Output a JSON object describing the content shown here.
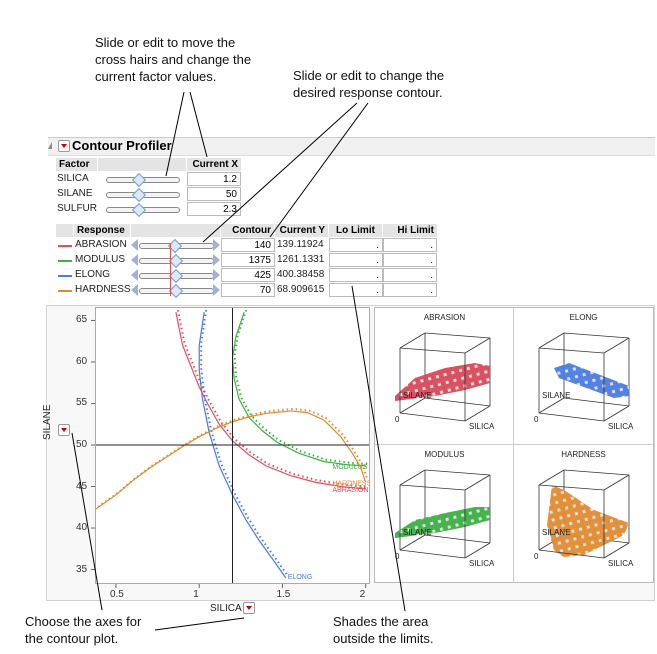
{
  "annotations": {
    "crosshairs": "Slide or edit to move the\ncross hairs and change the\ncurrent factor values.",
    "contour": "Slide or edit to change the\ndesired response contour.",
    "axes": "Choose the axes for\nthe contour plot.",
    "shade": "Shades the area\noutside the limits."
  },
  "panel": {
    "title": "Contour Profiler"
  },
  "factor_table": {
    "headers": {
      "factor": "Factor",
      "current_x": "Current X"
    },
    "rows": [
      {
        "name": "SILICA",
        "value": "1.2",
        "slider": 0.45
      },
      {
        "name": "SILANE",
        "value": "50",
        "slider": 0.45
      },
      {
        "name": "SULFUR",
        "value": "2.3",
        "slider": 0.45
      }
    ]
  },
  "response_table": {
    "headers": {
      "response": "Response",
      "contour": "Contour",
      "current_y": "Current Y",
      "lo": "Lo Limit",
      "hi": "Hi Limit"
    },
    "rows": [
      {
        "name": "ABRASION",
        "color": "#e0505a",
        "contour": "140",
        "current_y": "139.11924",
        "lo": ".",
        "hi": "."
      },
      {
        "name": "MODULUS",
        "color": "#3cb043",
        "contour": "1375",
        "current_y": "1261.1331",
        "lo": ".",
        "hi": "."
      },
      {
        "name": "ELONG",
        "color": "#4a7be0",
        "contour": "425",
        "current_y": "400.38458",
        "lo": ".",
        "hi": "."
      },
      {
        "name": "HARDNESS",
        "color": "#e08a30",
        "contour": "70",
        "current_y": "68.909615",
        "lo": ".",
        "hi": "."
      }
    ]
  },
  "chart_data": {
    "type": "line",
    "xlabel": "SILICA",
    "ylabel": "SILANE",
    "xlim": [
      0.38,
      2.02
    ],
    "ylim": [
      33.5,
      66.5
    ],
    "xticks": [
      "0.5",
      "1",
      "1.5",
      "2"
    ],
    "yticks": [
      "35",
      "40",
      "45",
      "50",
      "55",
      "60",
      "65"
    ],
    "crosshair": {
      "x": 1.2,
      "y": 50
    },
    "series": [
      {
        "name": "ABRASION",
        "label": "ABRASION",
        "color": "#e0505a",
        "points": [
          [
            0.86,
            66
          ],
          [
            0.9,
            62
          ],
          [
            0.95,
            59.5
          ],
          [
            1.0,
            57
          ],
          [
            1.05,
            55
          ],
          [
            1.12,
            52.5
          ],
          [
            1.2,
            50.5
          ],
          [
            1.3,
            48.8
          ],
          [
            1.4,
            47.5
          ],
          [
            1.55,
            46.3
          ],
          [
            1.7,
            45.5
          ],
          [
            1.85,
            45
          ],
          [
            2.0,
            44.7
          ]
        ]
      },
      {
        "name": "MODULUS",
        "label": "MODULUS",
        "color": "#3cb043",
        "points": [
          [
            1.27,
            66
          ],
          [
            1.22,
            63
          ],
          [
            1.2,
            60.5
          ],
          [
            1.21,
            58
          ],
          [
            1.24,
            55.5
          ],
          [
            1.3,
            53.3
          ],
          [
            1.38,
            51.7
          ],
          [
            1.47,
            50.3
          ],
          [
            1.6,
            49
          ],
          [
            1.75,
            48
          ],
          [
            1.9,
            47.6
          ],
          [
            2.0,
            47.5
          ]
        ]
      },
      {
        "name": "ELONG",
        "label": "ELONG",
        "color": "#4a7be0",
        "points": [
          [
            1.03,
            66
          ],
          [
            1.0,
            62
          ],
          [
            1.0,
            59
          ],
          [
            1.02,
            55.5
          ],
          [
            1.06,
            51.5
          ],
          [
            1.12,
            47.5
          ],
          [
            1.2,
            44
          ],
          [
            1.28,
            41
          ],
          [
            1.36,
            38.5
          ],
          [
            1.45,
            36
          ],
          [
            1.52,
            34
          ]
        ]
      },
      {
        "name": "HARDNESS",
        "label": "HARDNESS",
        "color": "#e08a30",
        "points": [
          [
            0.38,
            42.3
          ],
          [
            0.5,
            44
          ],
          [
            0.6,
            45.7
          ],
          [
            0.7,
            47.2
          ],
          [
            0.8,
            48.5
          ],
          [
            0.9,
            49.8
          ],
          [
            1.0,
            51
          ],
          [
            1.1,
            52
          ],
          [
            1.2,
            52.8
          ],
          [
            1.3,
            53.4
          ],
          [
            1.4,
            53.8
          ],
          [
            1.55,
            54.1
          ],
          [
            1.65,
            53.9
          ],
          [
            1.75,
            53
          ],
          [
            1.85,
            51
          ],
          [
            1.92,
            49
          ],
          [
            1.97,
            47.3
          ],
          [
            2.0,
            45.5
          ]
        ]
      }
    ]
  },
  "surface_plots": [
    {
      "title": "ABRASION",
      "color": "#d8485a",
      "axis_x": "SILICA",
      "axis_y": "SILANE",
      "origin": "0"
    },
    {
      "title": "ELONG",
      "color": "#4a7be0",
      "axis_x": "SILICA",
      "axis_y": "SILANE",
      "origin": "0"
    },
    {
      "title": "MODULUS",
      "color": "#3cb043",
      "axis_x": "SILICA",
      "axis_y": "SILANE",
      "origin": "0"
    },
    {
      "title": "HARDNESS",
      "color": "#e08a30",
      "axis_x": "SILICA",
      "axis_y": "SILANE",
      "origin": "0"
    }
  ]
}
